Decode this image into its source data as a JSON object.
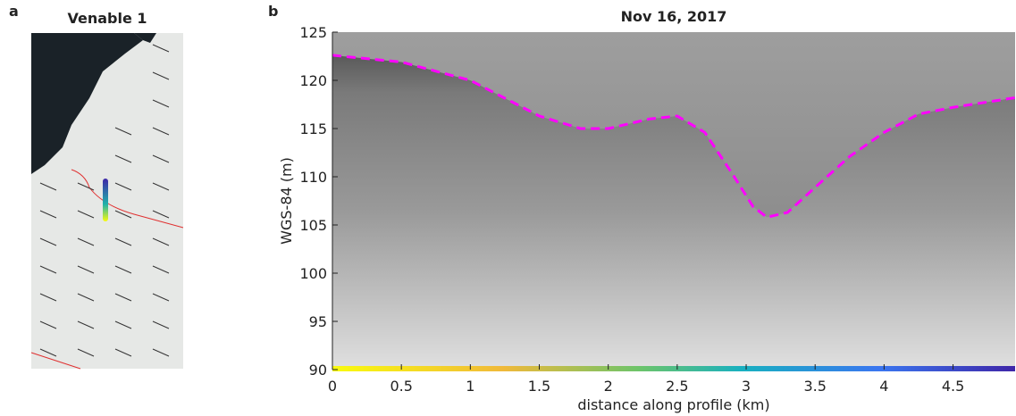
{
  "panel_a": {
    "label": "a",
    "title": "Venable 1"
  },
  "chart_data": {
    "type": "line",
    "panel_label": "b",
    "title": "Nov 16, 2017",
    "xlabel": "distance along profile (km)",
    "ylabel": "WGS-84 (m)",
    "xlim": [
      0,
      4.95
    ],
    "ylim": [
      90,
      125
    ],
    "xticks": [
      0,
      0.5,
      1,
      1.5,
      2,
      2.5,
      3,
      3.5,
      4,
      4.5
    ],
    "yticks": [
      90,
      95,
      100,
      105,
      110,
      115,
      120,
      125
    ],
    "grid": false,
    "series": [
      {
        "color": "#ff00ff",
        "x": [
          0,
          0.5,
          1,
          1.5,
          1.8,
          2,
          2.3,
          2.5,
          2.7,
          2.9,
          3.05,
          3.15,
          3.3,
          3.5,
          3.75,
          4,
          4.25,
          4.5,
          4.95
        ],
        "values": [
          122.6,
          121.9,
          120.0,
          116.3,
          115.0,
          115.0,
          116.0,
          116.3,
          114.6,
          110.3,
          106.9,
          105.8,
          106.3,
          108.9,
          112.1,
          114.6,
          116.5,
          117.2,
          118.2
        ]
      }
    ]
  }
}
